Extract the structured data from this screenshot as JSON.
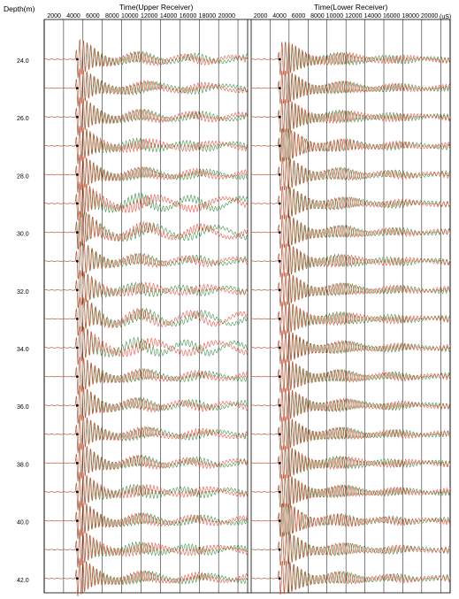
{
  "chart_data": {
    "type": "line",
    "description_labels": {
      "ylabel": "Depth(m)",
      "units": "(uS)"
    },
    "panels": [
      {
        "title": "Time(Upper Receiver)",
        "x_ticks": [
          2000,
          4000,
          6000,
          8000,
          10000,
          12000,
          14000,
          16000,
          18000,
          20000
        ],
        "xlim": [
          0,
          21000
        ]
      },
      {
        "title": "Time(Lower Receiver)",
        "x_ticks": [
          2000,
          4000,
          6000,
          8000,
          10000,
          12000,
          14000,
          16000,
          18000,
          20000
        ],
        "xlim": [
          0,
          21000
        ]
      }
    ],
    "depth_labels": [
      "24.0",
      "26.0",
      "28.0",
      "30.0",
      "32.0",
      "34.0",
      "36.0",
      "38.0",
      "40.0",
      "42.0"
    ],
    "depths": [
      24.0,
      25.0,
      26.0,
      27.0,
      28.0,
      29.0,
      30.0,
      31.0,
      32.0,
      33.0,
      34.0,
      35.0,
      36.0,
      37.0,
      38.0,
      39.0,
      40.0,
      41.0,
      42.0
    ],
    "series": [
      {
        "color": "#2e8b3a"
      },
      {
        "color": "#e8493a"
      }
    ],
    "first_arrival_us": {
      "upper": 3200,
      "lower": 2800
    },
    "grid": true
  }
}
